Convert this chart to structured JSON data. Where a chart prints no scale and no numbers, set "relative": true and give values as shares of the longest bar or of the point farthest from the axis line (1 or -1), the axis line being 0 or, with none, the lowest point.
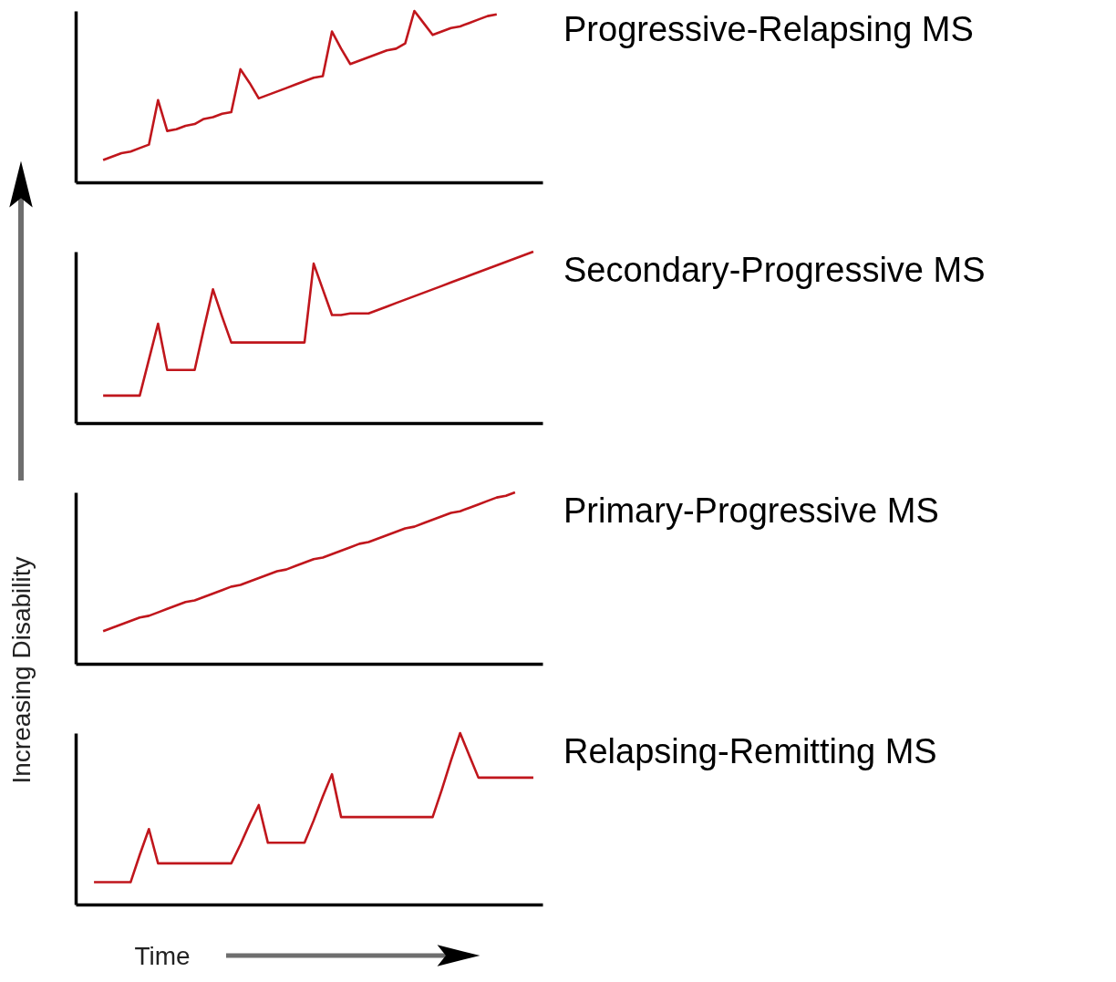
{
  "chart_data": [
    {
      "type": "line",
      "annotations": [
        "Progressive-Relapsing MS"
      ],
      "relative": true,
      "tick_labels": false,
      "categories": [
        null,
        null,
        null,
        null,
        null,
        null,
        null,
        null,
        null,
        null,
        null,
        null,
        null,
        null,
        null,
        null,
        null,
        null,
        null,
        null,
        null,
        null,
        null,
        null,
        null,
        null,
        null,
        null,
        null,
        null,
        null,
        null,
        null,
        null,
        null,
        null,
        null,
        null,
        null,
        null,
        null,
        null,
        null,
        null,
        null,
        null,
        null,
        null,
        null,
        null,
        null,
        null
      ],
      "series": [
        {
          "color": "#c0161c",
          "values": [
            null,
            null,
            null,
            0.13,
            0.15,
            0.17,
            0.18,
            0.2,
            0.22,
            0.48,
            0.3,
            0.31,
            0.33,
            0.34,
            0.37,
            0.38,
            0.4,
            0.41,
            0.66,
            0.58,
            0.49,
            0.51,
            0.53,
            0.55,
            0.57,
            0.59,
            0.61,
            0.62,
            0.88,
            0.78,
            0.69,
            0.71,
            0.73,
            0.75,
            0.77,
            0.78,
            0.81,
            1,
            0.93,
            0.86,
            0.88,
            0.9,
            0.91,
            0.93,
            0.95,
            0.97,
            0.98,
            null,
            null,
            null,
            null,
            null
          ]
        }
      ]
    },
    {
      "type": "line",
      "annotations": [
        "Secondary-Progressive MS"
      ],
      "relative": true,
      "tick_labels": false,
      "categories": [
        null,
        null,
        null,
        null,
        null,
        null,
        null,
        null,
        null,
        null,
        null,
        null,
        null,
        null,
        null,
        null,
        null,
        null,
        null,
        null,
        null,
        null,
        null,
        null,
        null,
        null,
        null,
        null,
        null,
        null,
        null,
        null,
        null,
        null,
        null,
        null,
        null,
        null,
        null,
        null,
        null,
        null,
        null,
        null,
        null,
        null,
        null,
        null,
        null,
        null,
        null,
        null
      ],
      "series": [
        {
          "color": "#c0161c",
          "values": [
            null,
            null,
            null,
            0.16,
            0.16,
            0.16,
            0.16,
            0.16,
            0.37,
            0.58,
            0.31,
            0.31,
            0.31,
            0.31,
            0.55,
            0.78,
            0.62,
            0.47,
            0.47,
            0.47,
            0.47,
            0.47,
            0.47,
            0.47,
            0.47,
            0.47,
            0.93,
            0.78,
            0.63,
            0.63,
            0.64,
            0.64,
            0.64,
            0.66,
            0.68,
            0.7,
            0.72,
            0.74,
            0.76,
            0.78,
            0.8,
            0.82,
            0.84,
            0.86,
            0.88,
            0.9,
            0.92,
            0.94,
            0.96,
            0.98,
            1,
            null
          ]
        }
      ]
    },
    {
      "type": "line",
      "annotations": [
        "Primary-Progressive MS"
      ],
      "relative": true,
      "tick_labels": false,
      "categories": [
        null,
        null,
        null,
        null,
        null,
        null,
        null,
        null,
        null,
        null,
        null,
        null,
        null,
        null,
        null,
        null,
        null,
        null,
        null,
        null,
        null,
        null,
        null,
        null,
        null,
        null,
        null,
        null,
        null,
        null,
        null,
        null,
        null,
        null,
        null,
        null,
        null,
        null,
        null,
        null,
        null,
        null,
        null,
        null,
        null,
        null,
        null,
        null,
        null,
        null,
        null,
        null
      ],
      "series": [
        {
          "color": "#c0161c",
          "values": [
            null,
            null,
            null,
            0.19,
            0.21,
            0.23,
            0.25,
            0.27,
            0.28,
            0.3,
            0.32,
            0.34,
            0.36,
            0.37,
            0.39,
            0.41,
            0.43,
            0.45,
            0.46,
            0.48,
            0.5,
            0.52,
            0.54,
            0.55,
            0.57,
            0.59,
            0.61,
            0.62,
            0.64,
            0.66,
            0.68,
            0.7,
            0.71,
            0.73,
            0.75,
            0.77,
            0.79,
            0.8,
            0.82,
            0.84,
            0.86,
            0.88,
            0.89,
            0.91,
            0.93,
            0.95,
            0.97,
            0.98,
            1,
            null,
            null,
            null
          ]
        }
      ]
    },
    {
      "type": "line",
      "annotations": [
        "Relapsing-Remitting MS"
      ],
      "relative": true,
      "tick_labels": false,
      "xlabel": "Time",
      "ylabel": "Increasing Disability",
      "categories": [
        null,
        null,
        null,
        null,
        null,
        null,
        null,
        null,
        null,
        null,
        null,
        null,
        null,
        null,
        null,
        null,
        null,
        null,
        null,
        null,
        null,
        null,
        null,
        null,
        null,
        null,
        null,
        null,
        null,
        null,
        null,
        null,
        null,
        null,
        null,
        null,
        null,
        null,
        null,
        null,
        null,
        null,
        null,
        null,
        null,
        null,
        null,
        null,
        null,
        null,
        null,
        null
      ],
      "series": [
        {
          "color": "#c0161c",
          "values": [
            null,
            null,
            0.13,
            0.13,
            0.13,
            0.13,
            0.13,
            0.29,
            0.44,
            0.24,
            0.24,
            0.24,
            0.24,
            0.24,
            0.24,
            0.24,
            0.24,
            0.24,
            0.35,
            0.47,
            0.58,
            0.36,
            0.36,
            0.36,
            0.36,
            0.36,
            0.49,
            0.63,
            0.76,
            0.51,
            0.51,
            0.51,
            0.51,
            0.51,
            0.51,
            0.51,
            0.51,
            0.51,
            0.51,
            0.51,
            0.67,
            0.84,
            1,
            0.87,
            0.74,
            0.74,
            0.74,
            0.74,
            0.74,
            0.74,
            0.74,
            null
          ]
        }
      ]
    }
  ]
}
